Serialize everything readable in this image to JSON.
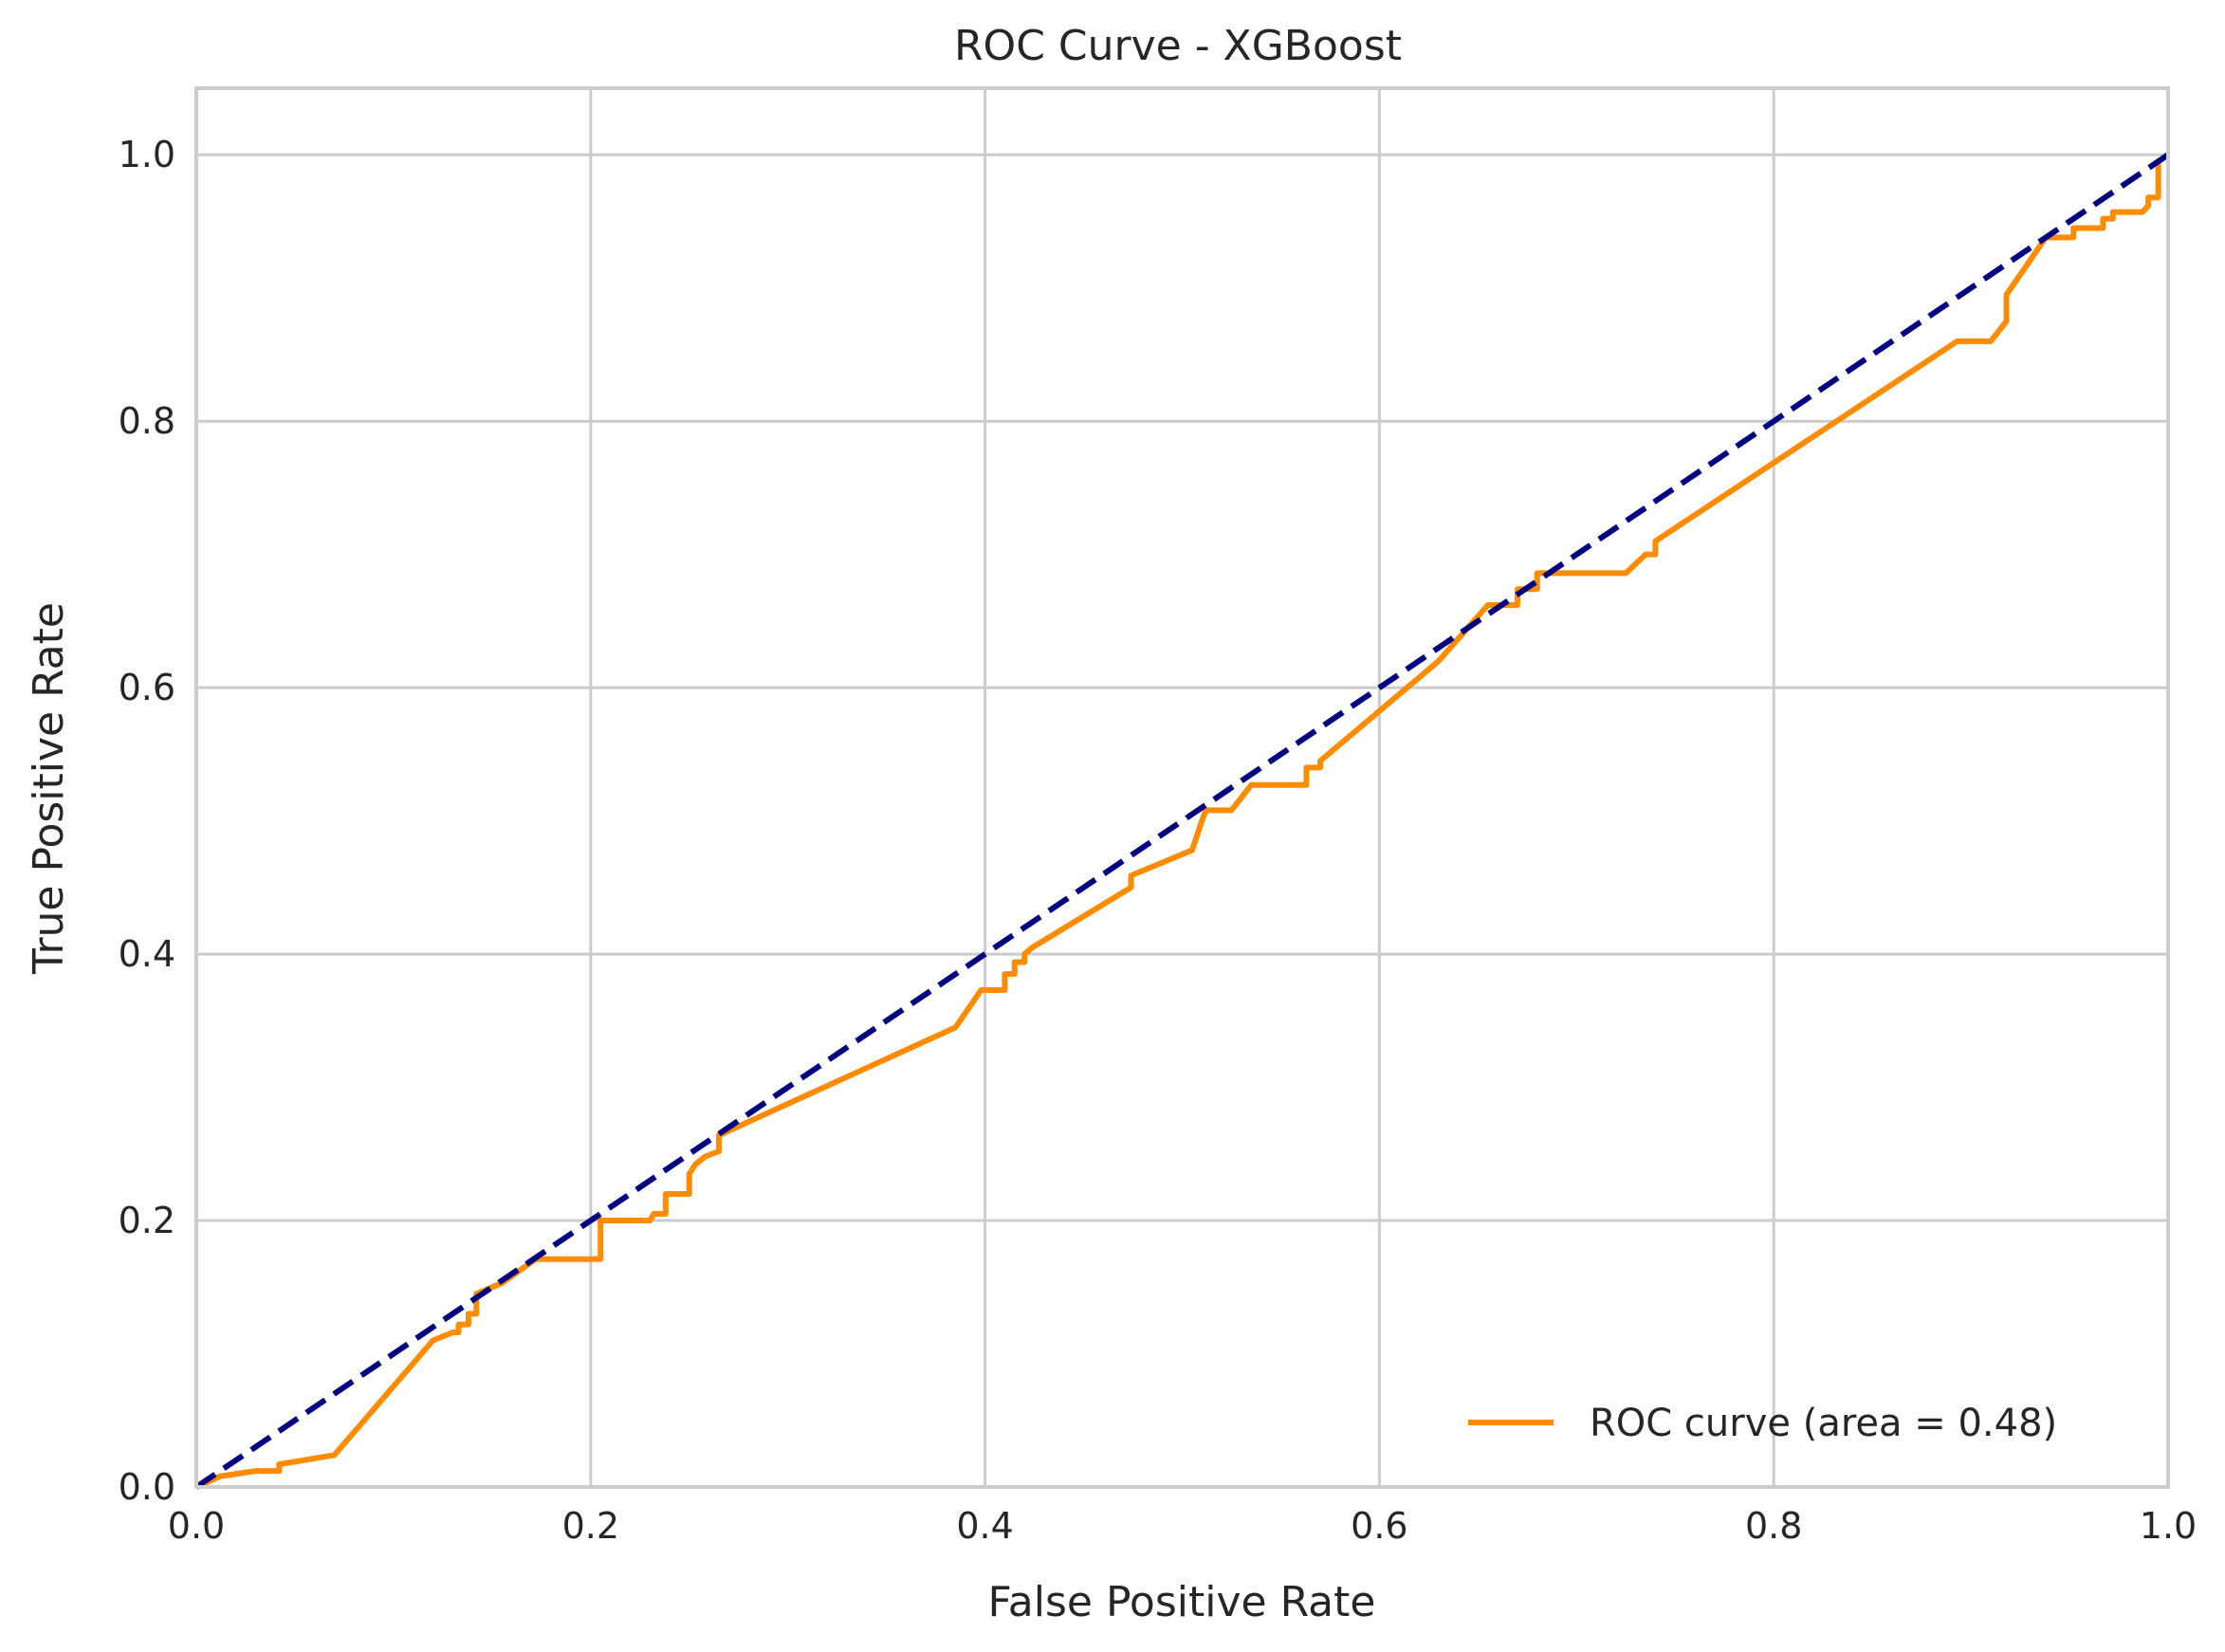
{
  "chart_data": {
    "type": "line",
    "title": "ROC Curve - XGBoost",
    "xlabel": "False Positive Rate",
    "ylabel": "True Positive Rate",
    "xlim": [
      0.0,
      1.0
    ],
    "ylim": [
      0.0,
      1.05
    ],
    "xticks": [
      "0.0",
      "0.2",
      "0.4",
      "0.6",
      "0.8",
      "1.0"
    ],
    "yticks": [
      "0.0",
      "0.2",
      "0.4",
      "0.6",
      "0.8",
      "1.0"
    ],
    "grid": true,
    "legend_position": "lower right",
    "series": [
      {
        "name": "ROC curve (area = 0.48)",
        "color": "#ff8c00",
        "style": "solid",
        "x": [
          0.0,
          0.012,
          0.03,
          0.042,
          0.042,
          0.07,
          0.12,
          0.13,
          0.133,
          0.133,
          0.138,
          0.138,
          0.142,
          0.142,
          0.155,
          0.172,
          0.172,
          0.205,
          0.205,
          0.23,
          0.232,
          0.238,
          0.238,
          0.25,
          0.25,
          0.253,
          0.258,
          0.265,
          0.265,
          0.385,
          0.398,
          0.41,
          0.41,
          0.415,
          0.415,
          0.42,
          0.42,
          0.424,
          0.474,
          0.474,
          0.505,
          0.51,
          0.512,
          0.525,
          0.535,
          0.563,
          0.563,
          0.57,
          0.57,
          0.63,
          0.655,
          0.67,
          0.67,
          0.68,
          0.68,
          0.685,
          0.725,
          0.735,
          0.74,
          0.74,
          0.893,
          0.91,
          0.918,
          0.918,
          0.938,
          0.94,
          0.952,
          0.952,
          0.967,
          0.967,
          0.972,
          0.972,
          0.987,
          0.99,
          0.99,
          0.995,
          0.995,
          1.0
        ],
        "y": [
          0.0,
          0.008,
          0.012,
          0.012,
          0.017,
          0.024,
          0.11,
          0.116,
          0.116,
          0.122,
          0.122,
          0.13,
          0.13,
          0.145,
          0.153,
          0.171,
          0.171,
          0.171,
          0.2,
          0.2,
          0.205,
          0.205,
          0.22,
          0.22,
          0.235,
          0.242,
          0.248,
          0.252,
          0.264,
          0.345,
          0.373,
          0.373,
          0.385,
          0.385,
          0.394,
          0.394,
          0.4,
          0.405,
          0.45,
          0.459,
          0.478,
          0.5,
          0.508,
          0.508,
          0.527,
          0.527,
          0.54,
          0.54,
          0.545,
          0.62,
          0.662,
          0.662,
          0.674,
          0.674,
          0.686,
          0.686,
          0.686,
          0.7,
          0.7,
          0.71,
          0.86,
          0.86,
          0.875,
          0.895,
          0.938,
          0.938,
          0.938,
          0.945,
          0.945,
          0.952,
          0.952,
          0.957,
          0.957,
          0.962,
          0.968,
          0.968,
          0.995,
          1.0
        ]
      },
      {
        "name": "",
        "color": "#000080",
        "style": "dashed",
        "x": [
          0.0,
          1.0
        ],
        "y": [
          0.0,
          1.0
        ]
      }
    ]
  }
}
